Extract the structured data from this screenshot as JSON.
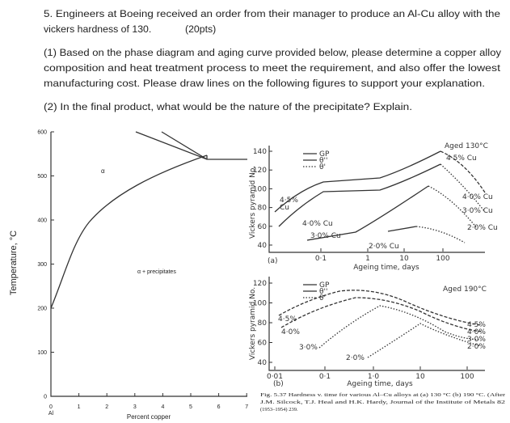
{
  "question": {
    "heading_lines": [
      "5. Engineers at Boeing received an order from their manager to produce an Al-Cu alloy with the",
      "vickers hardness of 130."
    ],
    "points": "(20pts)",
    "part1_lines": [
      "(1) Based on the phase diagram and aging curve provided below, please determine a copper alloy",
      "composition and heat treatment process to meet the requirement, and also offer the lowest",
      "manufacturing cost.  Please draw lines on the following figures to support your explanation."
    ],
    "part2": "(2) In the final product, what would be the nature of the precipitate? Explain."
  },
  "phase_diagram": {
    "y_label": "Temperature, °C",
    "x_label": "Percent copper",
    "yticks": [
      0,
      100,
      200,
      300,
      400,
      500,
      600
    ],
    "xticks": [
      0,
      1,
      2,
      3,
      4,
      5,
      6,
      7
    ],
    "x_origin_label": "Al",
    "region_alpha": "α",
    "region_two_phase": "α + precipitates"
  },
  "aging_a": {
    "panel": "(a)",
    "y_label": "Vickers pyramid No.",
    "yticks": [
      40,
      60,
      80,
      100,
      120,
      140
    ],
    "xticks": [
      "0·1",
      "1",
      "10",
      "100"
    ],
    "x_label": "Ageing time, days",
    "legend": [
      "GP",
      "θ''",
      "θ'"
    ],
    "title": "Aged 130°C",
    "curve_labels_right": [
      "4·5% Cu",
      "4·0% Cu",
      "3·0% Cu",
      "2·0% Cu"
    ],
    "curve_labels_left": [
      "4·5%",
      "Cu",
      "4·0% Cu",
      "3·0% Cu",
      "2·0% Cu"
    ]
  },
  "aging_b": {
    "panel": "(b)",
    "y_label": "Vickers pyramid No.",
    "yticks": [
      40,
      60,
      80,
      100,
      120
    ],
    "xticks": [
      "0·01",
      "0·1",
      "1·0",
      "10",
      "100"
    ],
    "x_label": "Ageing time, days",
    "legend": [
      "GP",
      "θ''",
      "θ'"
    ],
    "title": "Aged 190°C",
    "curve_labels_right": [
      "4·5%",
      "4·0%",
      "3·0%",
      "2·0%"
    ],
    "curve_labels_left": [
      "4·5%",
      "4·0%",
      "3·0%",
      "2·0%"
    ]
  },
  "caption_lines": [
    "Fig. 5.37  Hardness v. time for various Al–Cu alloys at (a) 130 °C (b) 190 °C. (After",
    "J.M. Silcock, T.J. Heal and H.K. Hardy, Journal of the Institute of Metals 82",
    "(1953–1954) 239."
  ]
}
